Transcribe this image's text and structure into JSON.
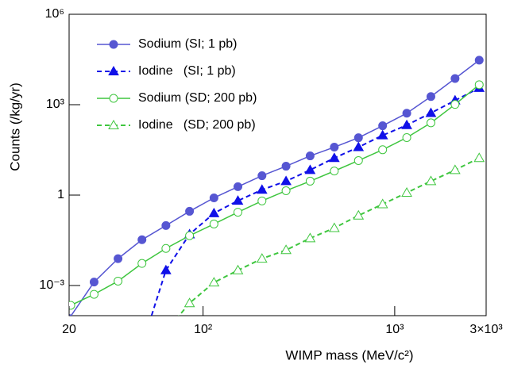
{
  "chart_data": {
    "type": "line",
    "xlabel": "WIMP mass (MeV/c²)",
    "ylabel": "Counts (/kg/yr)",
    "xlog": true,
    "ylog": true,
    "xlim": [
      20,
      3000
    ],
    "ylim": [
      0.0001,
      1000000
    ],
    "xticks": [
      20,
      {
        "value": 100,
        "label": "10²"
      },
      {
        "value": 1000,
        "label": "10³"
      },
      {
        "value": 3000,
        "label": "3×10³"
      }
    ],
    "yticks": [
      {
        "value": 0.001,
        "label": "10⁻³"
      },
      1,
      {
        "value": 1000,
        "label": "10³"
      },
      {
        "value": 1000000,
        "label": "10⁶"
      }
    ],
    "legend": "upper left",
    "series": [
      {
        "name": "Sodium (SI; 1 pb)",
        "color": "#5656d2",
        "marker": "circle",
        "filled": true,
        "dashed": false,
        "x": [
          20,
          27,
          36,
          48,
          64,
          85,
          114,
          152,
          203,
          271,
          362,
          484,
          647,
          865,
          1156,
          1545,
          2065,
          2760
        ],
        "values": [
          8e-05,
          0.0013,
          0.0078,
          0.033,
          0.098,
          0.29,
          0.81,
          1.9,
          4.4,
          9.1,
          20,
          39,
          80,
          200,
          520,
          1860,
          7400,
          30000
        ]
      },
      {
        "name": "Iodine   (SI; 1 pb)",
        "color": "#1010e8",
        "marker": "triangle",
        "filled": true,
        "dashed": true,
        "x": [
          48,
          64,
          85,
          114,
          152,
          203,
          271,
          362,
          484,
          647,
          865,
          1156,
          1545,
          2065,
          2760
        ],
        "values": [
          1e-05,
          0.0032,
          0.05,
          0.25,
          0.65,
          1.5,
          2.9,
          6.8,
          17,
          39,
          96,
          210,
          530,
          1380,
          3600
        ]
      },
      {
        "name": "Sodium (SD; 200 pb)",
        "color": "#3fc63f",
        "marker": "circle",
        "filled": false,
        "dashed": false,
        "x": [
          20.4,
          27,
          36,
          48,
          64,
          85,
          114,
          152,
          203,
          271,
          362,
          484,
          647,
          865,
          1156,
          1545,
          2065,
          2760
        ],
        "values": [
          0.00022,
          0.00051,
          0.0014,
          0.0054,
          0.017,
          0.045,
          0.11,
          0.27,
          0.64,
          1.4,
          2.9,
          6.3,
          14,
          32,
          81,
          250,
          1020,
          4600
        ]
      },
      {
        "name": "Iodine   (SD; 200 pb)",
        "color": "#3fc63f",
        "marker": "triangle",
        "filled": false,
        "dashed": true,
        "x": [
          64,
          85,
          114,
          152,
          203,
          271,
          362,
          484,
          647,
          865,
          1156,
          1545,
          2065,
          2760
        ],
        "values": [
          3e-05,
          0.00026,
          0.00126,
          0.0032,
          0.0078,
          0.015,
          0.037,
          0.081,
          0.21,
          0.5,
          1.2,
          2.9,
          6.8,
          17
        ]
      }
    ]
  }
}
